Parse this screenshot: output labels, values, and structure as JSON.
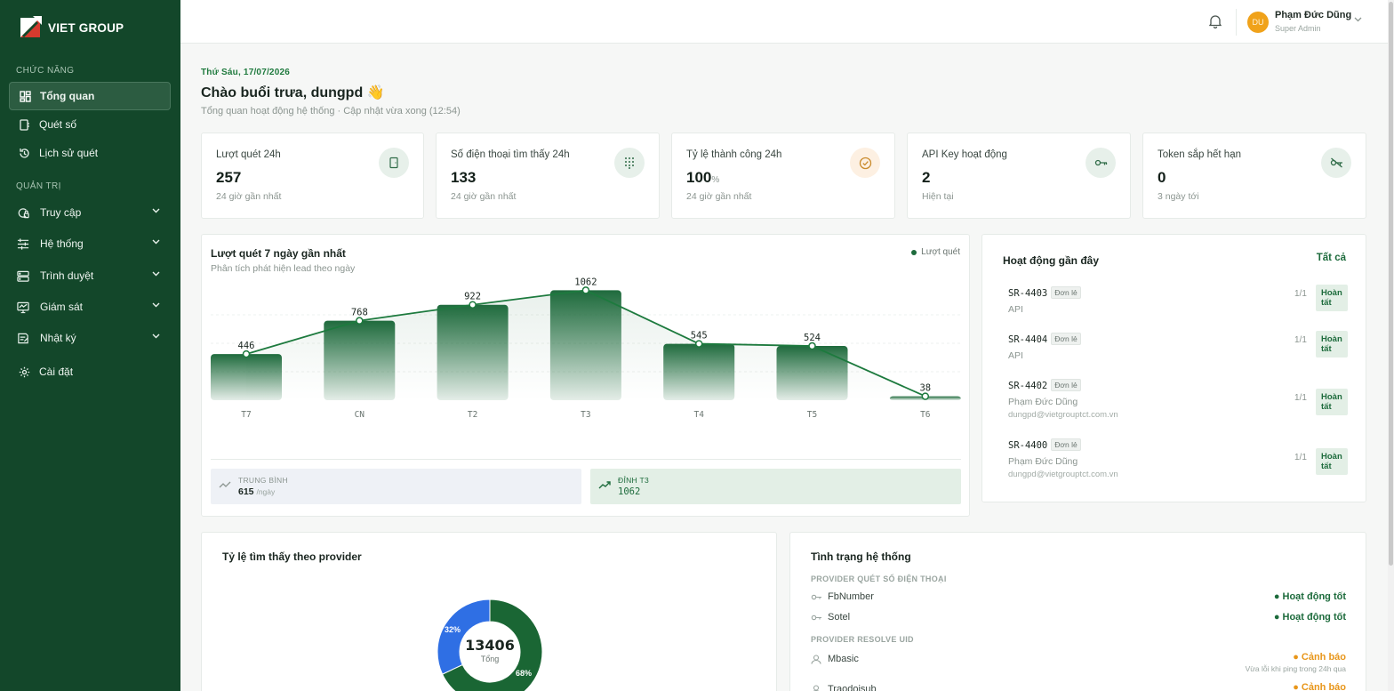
{
  "brand": {
    "name": "VIET GROUP"
  },
  "sidebar": {
    "section_features": "CHỨC NĂNG",
    "section_admin": "QUẢN TRỊ",
    "items": [
      {
        "label": "Tổng quan",
        "icon": "dashboard-icon"
      },
      {
        "label": "Quét số",
        "icon": "scan-icon"
      },
      {
        "label": "Lịch sử quét",
        "icon": "history-icon"
      },
      {
        "label": "Truy cập",
        "icon": "access-icon"
      },
      {
        "label": "Hệ thống",
        "icon": "sliders-icon"
      },
      {
        "label": "Trình duyệt",
        "icon": "browser-icon"
      },
      {
        "label": "Giám sát",
        "icon": "monitor-icon"
      },
      {
        "label": "Nhật ký",
        "icon": "log-icon"
      },
      {
        "label": "Cài đặt",
        "icon": "gear-icon"
      }
    ]
  },
  "user": {
    "initials": "DU",
    "name": "Phạm Đức Dũng",
    "role": "Super Admin"
  },
  "header": {
    "date": "Thứ Sáu, 17/07/2026",
    "greeting": "Chào buổi trưa, dungpd 👋",
    "subtitle": "Tổng quan hoạt động hệ thống · Cập nhật vừa xong (12:54)"
  },
  "stats": [
    {
      "title": "Lượt quét 24h",
      "value": "257",
      "unit": "",
      "note": "24 giờ gần nhất",
      "icon": "door-icon"
    },
    {
      "title": "Số điện thoại tìm thấy 24h",
      "value": "133",
      "unit": "",
      "note": "24 giờ gần nhất",
      "icon": "dialpad-icon"
    },
    {
      "title": "Tỷ lệ thành công 24h",
      "value": "100",
      "unit": "%",
      "note": "24 giờ gần nhất",
      "icon": "check-circle-icon"
    },
    {
      "title": "API Key hoạt động",
      "value": "2",
      "unit": "",
      "note": "Hiện tại",
      "icon": "key-icon"
    },
    {
      "title": "Token sắp hết hạn",
      "value": "0",
      "unit": "",
      "note": "3 ngày tới",
      "icon": "key-off-icon"
    }
  ],
  "chart": {
    "title": "Lượt quét 7 ngày gần nhất",
    "subtitle": "Phân tích phát hiện lead theo ngày",
    "legend": "Lượt quét",
    "avg_label": "TRUNG BÌNH",
    "avg_value": "615",
    "avg_unit": "/ngày",
    "peak_label": "ĐỈNH T3",
    "peak_value": "1062"
  },
  "chart_data": {
    "type": "bar",
    "categories": [
      "T7",
      "CN",
      "T2",
      "T3",
      "T4",
      "T5",
      "T6"
    ],
    "series": [
      {
        "name": "Lượt quét",
        "values": [
          446,
          768,
          922,
          1062,
          545,
          524,
          38
        ]
      }
    ],
    "title": "Lượt quét 7 ngày gần nhất",
    "subtitle": "Phân tích phát hiện lead theo ngày",
    "xlabel": "",
    "ylabel": "",
    "ylim": [
      0,
      1100
    ],
    "grid": true,
    "legend": "top-right",
    "colors": {
      "bar": "#2a7a4a",
      "line": "#1d7a3e"
    }
  },
  "activity": {
    "title": "Hoạt động gần đây",
    "all_link": "Tất cả",
    "items": [
      {
        "id": "SR-4403",
        "tag": "Đơn lẻ",
        "source": "API",
        "email": "",
        "count": "1/1",
        "status": "Hoàn tất"
      },
      {
        "id": "SR-4404",
        "tag": "Đơn lẻ",
        "source": "API",
        "email": "",
        "count": "1/1",
        "status": "Hoàn tất"
      },
      {
        "id": "SR-4402",
        "tag": "Đơn lẻ",
        "source": "Phạm Đức Dũng",
        "email": "dungpd@vietgrouptct.com.vn",
        "count": "1/1",
        "status": "Hoàn tất"
      },
      {
        "id": "SR-4400",
        "tag": "Đơn lẻ",
        "source": "Phạm Đức Dũng",
        "email": "dungpd@vietgrouptct.com.vn",
        "count": "1/1",
        "status": "Hoàn tất"
      }
    ]
  },
  "provider_ratio": {
    "title": "Tỷ lệ tìm thấy theo provider",
    "total": "13406",
    "total_label": "Tổng",
    "slices": [
      {
        "label": "68%",
        "value": 68,
        "color": "#1a6634"
      },
      {
        "label": "32%",
        "value": 32,
        "color": "#2f6fe4"
      }
    ]
  },
  "system": {
    "title": "Tình trạng hệ thống",
    "section_phone": "PROVIDER QUÉT SỐ ĐIỆN THOẠI",
    "section_uid": "PROVIDER RESOLVE UID",
    "providers": [
      {
        "name": "FbNumber",
        "status": "● Hoạt động tốt",
        "note": ""
      },
      {
        "name": "Sotel",
        "status": "● Hoạt động tốt",
        "note": ""
      },
      {
        "name": "Mbasic",
        "status": "● Cảnh báo",
        "note": "Vừa lỗi khi ping trong 24h qua"
      },
      {
        "name": "Traodoisub",
        "status": "● Cảnh báo",
        "note": ""
      }
    ]
  },
  "colors": {
    "sidebar": "#13472a",
    "accent": "#1d6b3c",
    "warning": "#e8961a",
    "blue": "#2f6fe4"
  }
}
